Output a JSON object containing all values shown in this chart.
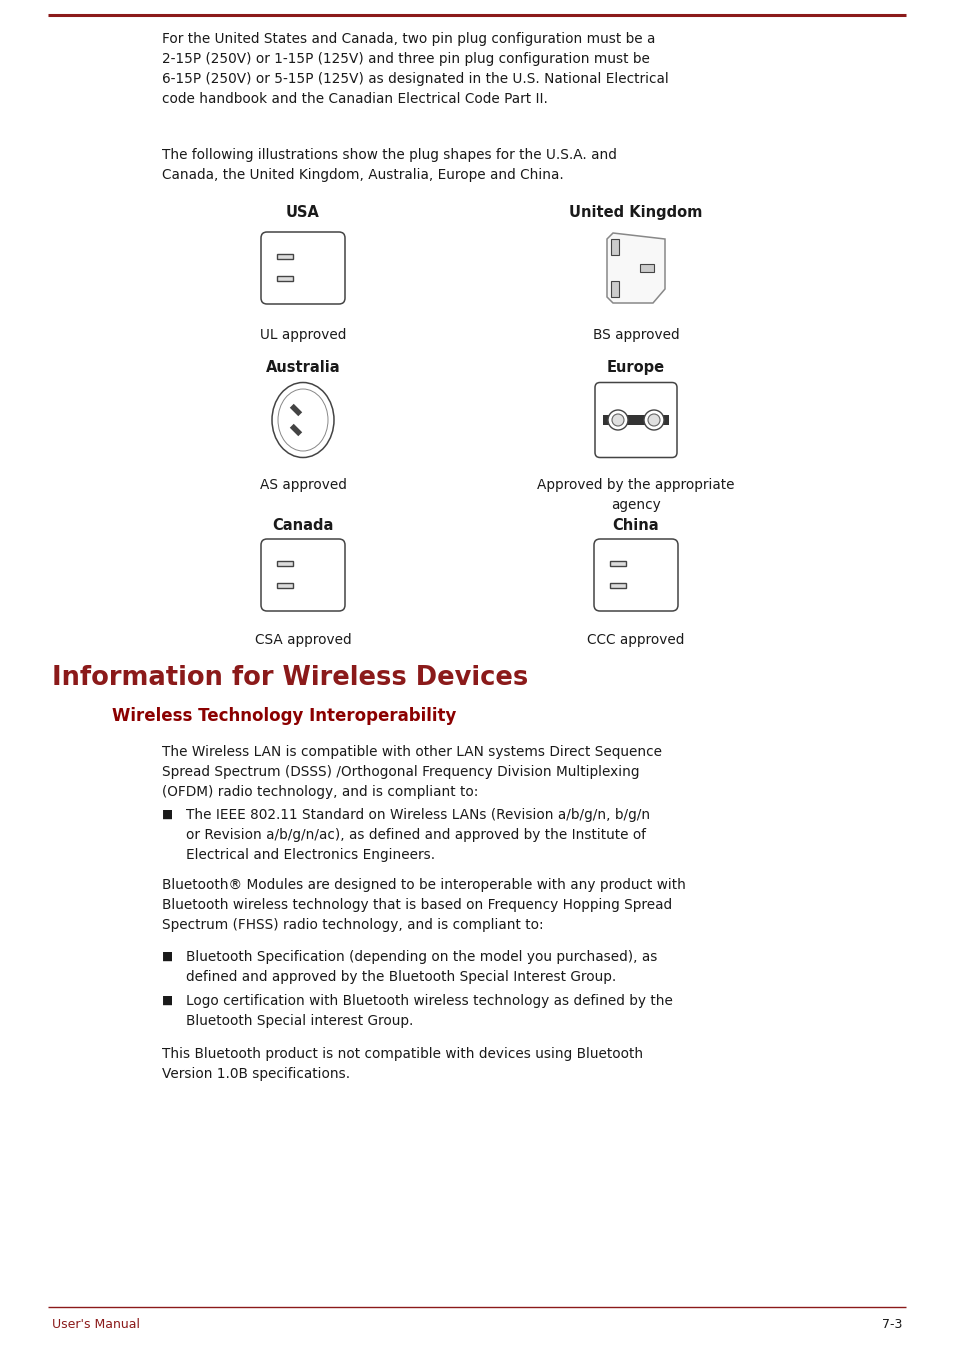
{
  "top_line_color": "#8B1A1A",
  "bottom_line_color": "#8B1A1A",
  "text_color": "#1a1a1a",
  "heading_color": "#8B1A1A",
  "subheading_color": "#8B0000",
  "page_bg": "#FFFFFF",
  "top_paragraph": "For the United States and Canada, two pin plug configuration must be a\n2-15P (250V) or 1-15P (125V) and three pin plug configuration must be\n6-15P (250V) or 5-15P (125V) as designated in the U.S. National Electrical\ncode handbook and the Canadian Electrical Code Part II.",
  "intro_paragraph": "The following illustrations show the plug shapes for the U.S.A. and\nCanada, the United Kingdom, Australia, Europe and China.",
  "section_heading": "Information for Wireless Devices",
  "subsection_heading": "Wireless Technology Interoperability",
  "body1": "The Wireless LAN is compatible with other LAN systems Direct Sequence\nSpread Spectrum (DSSS) /Orthogonal Frequency Division Multiplexing\n(OFDM) radio technology, and is compliant to:",
  "bullet1": "The IEEE 802.11 Standard on Wireless LANs (Revision a/b/g/n, b/g/n\nor Revision a/b/g/n/ac), as defined and approved by the Institute of\nElectrical and Electronics Engineers.",
  "body2": "Bluetooth® Modules are designed to be interoperable with any product with\nBluetooth wireless technology that is based on Frequency Hopping Spread\nSpectrum (FHSS) radio technology, and is compliant to:",
  "bullet2": "Bluetooth Specification (depending on the model you purchased), as\ndefined and approved by the Bluetooth Special Interest Group.",
  "bullet3": "Logo certification with Bluetooth wireless technology as defined by the\nBluetooth Special interest Group.",
  "body3": "This Bluetooth product is not compatible with devices using Bluetooth\nVersion 1.0B specifications.",
  "footer_left": "User's Manual",
  "footer_right": "7-3",
  "plug_labels": [
    "USA",
    "United Kingdom",
    "Australia",
    "Europe",
    "Canada",
    "China"
  ],
  "plug_approvals": [
    "UL approved",
    "BS approved",
    "AS approved",
    "Approved by the appropriate\nagency",
    "CSA approved",
    "CCC approved"
  ]
}
